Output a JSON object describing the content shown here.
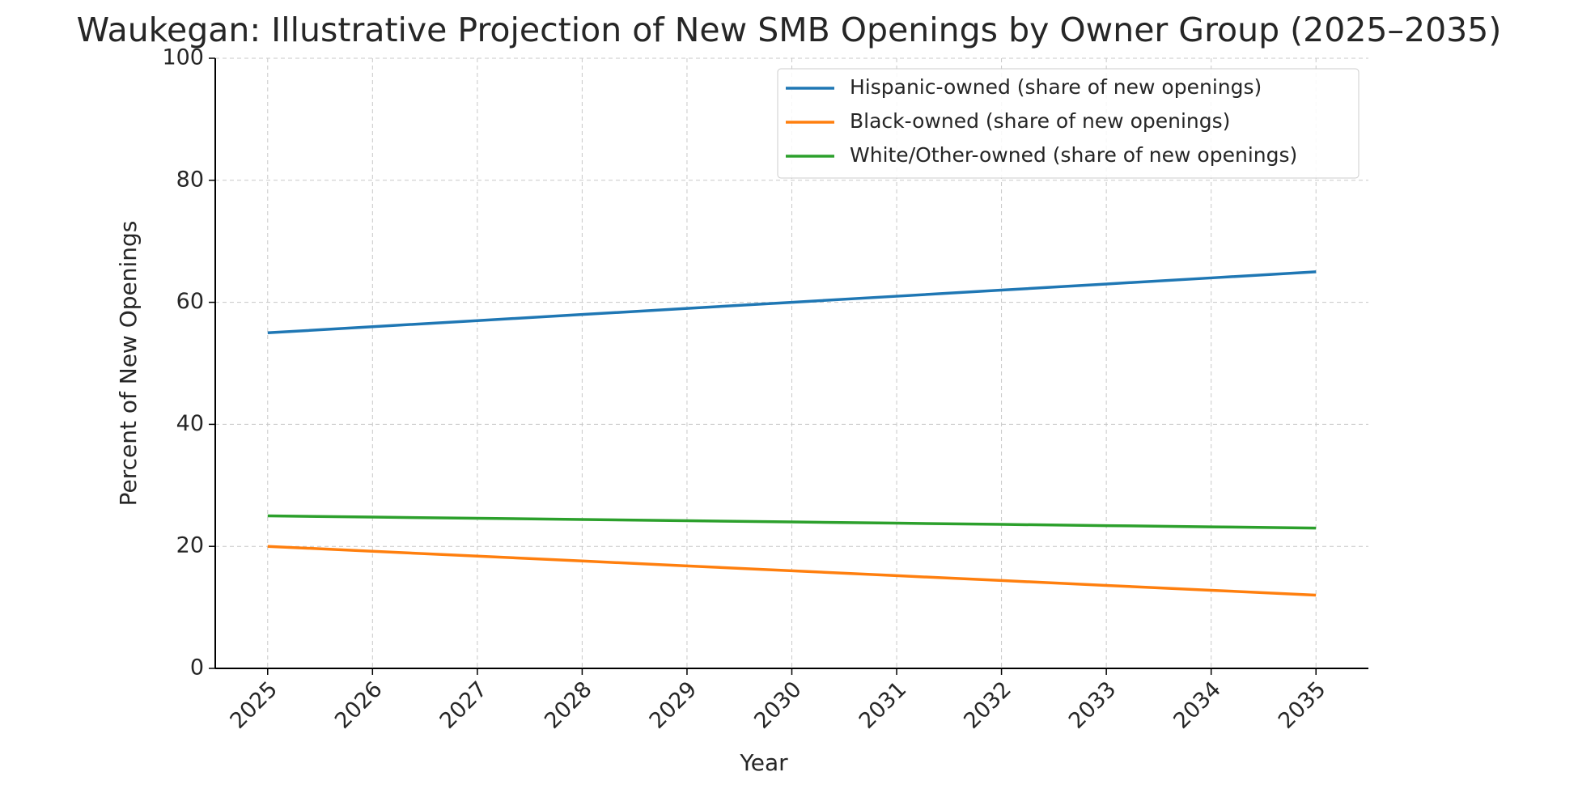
{
  "chart_data": {
    "type": "line",
    "title": "Waukegan: Illustrative Projection of New SMB Openings by Owner Group (2025–2035)",
    "x_label": "Year",
    "y_label": "Percent of New Openings",
    "x": [
      2025,
      2026,
      2027,
      2028,
      2029,
      2030,
      2031,
      2032,
      2033,
      2034,
      2035
    ],
    "series": [
      {
        "name": "Hispanic-owned (share of new openings)",
        "color": "#1f77b4",
        "values": [
          55,
          56,
          57,
          58,
          59,
          60,
          61,
          62,
          63,
          64,
          65
        ]
      },
      {
        "name": "Black-owned (share of new openings)",
        "color": "#ff7f0e",
        "values": [
          20,
          19.2,
          18.4,
          17.6,
          16.8,
          16,
          15.2,
          14.4,
          13.6,
          12.8,
          12
        ]
      },
      {
        "name": "White/Other-owned (share of new openings)",
        "color": "#2ca02c",
        "values": [
          25,
          24.8,
          24.6,
          24.4,
          24.2,
          24,
          23.8,
          23.6,
          23.4,
          23.2,
          23
        ]
      }
    ],
    "xlim": [
      2024.5,
      2035.5
    ],
    "xticks": [
      2025,
      2026,
      2027,
      2028,
      2029,
      2030,
      2031,
      2032,
      2033,
      2034,
      2035
    ],
    "ylim": [
      0,
      100
    ],
    "yticks": [
      0,
      20,
      40,
      60,
      80,
      100
    ],
    "grid": true,
    "legend": "upper-right"
  }
}
